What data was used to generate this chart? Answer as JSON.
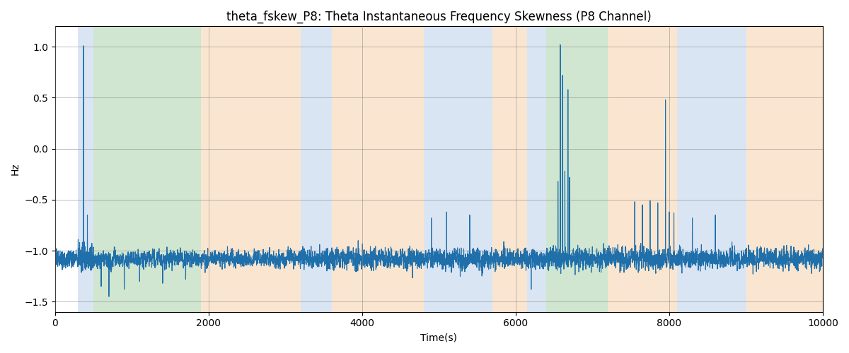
{
  "title": "theta_fskew_P8: Theta Instantaneous Frequency Skewness (P8 Channel)",
  "xlabel": "Time(s)",
  "ylabel": "Hz",
  "xlim": [
    0,
    10000
  ],
  "ylim": [
    -1.6,
    1.2
  ],
  "bg_bands": [
    {
      "xmin": 300,
      "xmax": 500,
      "color": "#aec6e8",
      "alpha": 0.45
    },
    {
      "xmin": 500,
      "xmax": 1900,
      "color": "#98c898",
      "alpha": 0.45
    },
    {
      "xmin": 1900,
      "xmax": 3200,
      "color": "#f5c897",
      "alpha": 0.45
    },
    {
      "xmin": 3200,
      "xmax": 3600,
      "color": "#aec6e8",
      "alpha": 0.45
    },
    {
      "xmin": 3600,
      "xmax": 4800,
      "color": "#f5c897",
      "alpha": 0.45
    },
    {
      "xmin": 4800,
      "xmax": 5700,
      "color": "#aec6e8",
      "alpha": 0.45
    },
    {
      "xmin": 5700,
      "xmax": 6150,
      "color": "#f5c897",
      "alpha": 0.45
    },
    {
      "xmin": 6150,
      "xmax": 6400,
      "color": "#aec6e8",
      "alpha": 0.45
    },
    {
      "xmin": 6400,
      "xmax": 7200,
      "color": "#98c898",
      "alpha": 0.45
    },
    {
      "xmin": 7200,
      "xmax": 8100,
      "color": "#f5c897",
      "alpha": 0.45
    },
    {
      "xmin": 8100,
      "xmax": 9000,
      "color": "#aec6e8",
      "alpha": 0.45
    },
    {
      "xmin": 9000,
      "xmax": 10000,
      "color": "#f5c897",
      "alpha": 0.45
    }
  ],
  "line_color": "#1f6fab",
  "line_width": 0.8,
  "yticks": [
    -1.5,
    -1.0,
    -0.5,
    0.0,
    0.5,
    1.0
  ],
  "xticks": [
    0,
    2000,
    4000,
    6000,
    8000,
    10000
  ],
  "seed": 42,
  "n_points": 10000
}
